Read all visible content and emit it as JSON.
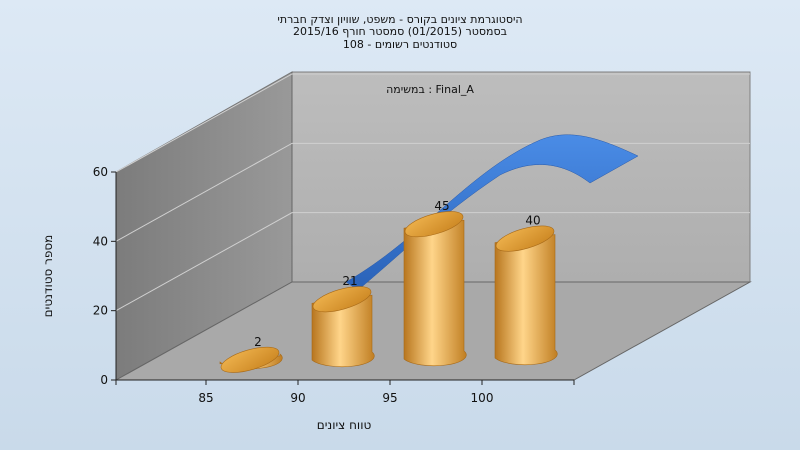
{
  "chart_data": {
    "type": "bar",
    "title_lines": [
      "היסטוגרמת ציונים בקורס - משפט, שוויון וצדק חברתי",
      "בסמסטר  (01/2015)  סמסטר חורף 2015/16",
      "סטודנטים רשומים - 108"
    ],
    "task_label": "במשימה : Final_A",
    "xlabel": "טווח ציונים",
    "ylabel": "מספר סטודנטים",
    "x_ticks": [
      "85",
      "90",
      "95",
      "100"
    ],
    "y_ticks": [
      "0",
      "20",
      "40",
      "60"
    ],
    "ylim": [
      0,
      60
    ],
    "categories": [
      "85",
      "90",
      "95",
      "100"
    ],
    "values": [
      2,
      21,
      45,
      40
    ],
    "data_labels": [
      "2",
      "21",
      "45",
      "40"
    ],
    "trend_curve": true,
    "colors": {
      "bar": "#e0a040",
      "trend": "#3a78d0",
      "back_wall": "#b3b3b3",
      "side_wall": "#8a8a8a",
      "floor": "#a8a8a8"
    }
  }
}
